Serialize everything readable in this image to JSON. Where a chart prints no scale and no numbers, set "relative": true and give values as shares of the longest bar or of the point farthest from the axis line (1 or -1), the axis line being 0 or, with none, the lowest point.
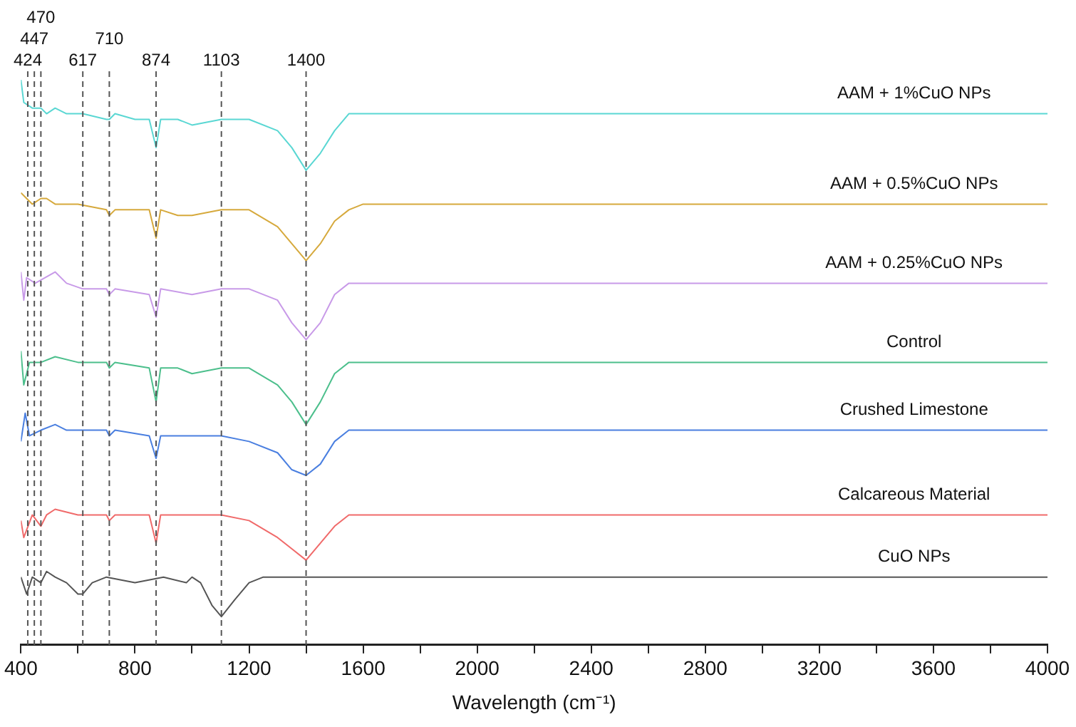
{
  "chart_data": {
    "type": "line",
    "relative": true,
    "xlabel": "Wavelength (cm⁻¹)",
    "xlim": [
      400,
      4000
    ],
    "xticks": [
      400,
      {
        "value": 600,
        "label": null
      },
      800,
      {
        "value": 1000,
        "label": null
      },
      1200,
      {
        "value": 1400,
        "label": null
      },
      1600,
      {
        "value": 1800,
        "label": null
      },
      2000,
      {
        "value": 2200,
        "label": null
      },
      2400,
      {
        "value": 2600,
        "label": null
      },
      2800,
      {
        "value": 3000,
        "label": null
      },
      3200,
      {
        "value": 3400,
        "label": null
      },
      3600,
      {
        "value": 3800,
        "label": null
      },
      4000
    ],
    "grid": false,
    "legend": false,
    "marker": "none",
    "line_style": "solid",
    "ref_lines": [
      {
        "axis": "x",
        "value": 424,
        "label": "424",
        "color": "#555555",
        "line_style": "dashed"
      },
      {
        "axis": "x",
        "value": 447,
        "label": "447",
        "color": "#555555",
        "line_style": "dashed"
      },
      {
        "axis": "x",
        "value": 470,
        "label": "470",
        "color": "#555555",
        "line_style": "dashed"
      },
      {
        "axis": "x",
        "value": 617,
        "label": "617",
        "color": "#555555",
        "line_style": "dashed"
      },
      {
        "axis": "x",
        "value": 710,
        "label": "710",
        "color": "#555555",
        "line_style": "dashed"
      },
      {
        "axis": "x",
        "value": 874,
        "label": "874",
        "color": "#555555",
        "line_style": "dashed"
      },
      {
        "axis": "x",
        "value": 1103,
        "label": "1103",
        "color": "#555555",
        "line_style": "dashed"
      },
      {
        "axis": "x",
        "value": 1400,
        "label": "1400",
        "color": "#555555",
        "line_style": "dashed"
      }
    ],
    "series": [
      {
        "name": "AAM + 1%CuO NPs",
        "color": "#5ad7d3",
        "x": [
          400,
          410,
          440,
          470,
          490,
          520,
          560,
          617,
          700,
          710,
          730,
          800,
          850,
          874,
          890,
          950,
          1000,
          1103,
          1200,
          1300,
          1350,
          1400,
          1450,
          1500,
          1550,
          1600,
          2000,
          2400,
          2800,
          4000
        ],
        "values": [
          1.0,
          0.96,
          0.95,
          0.95,
          0.94,
          0.95,
          0.94,
          0.94,
          0.93,
          0.93,
          0.94,
          0.93,
          0.93,
          0.88,
          0.93,
          0.93,
          0.92,
          0.93,
          0.93,
          0.91,
          0.88,
          0.84,
          0.87,
          0.91,
          0.94,
          0.94,
          0.94,
          0.94,
          0.94,
          0.94
        ]
      },
      {
        "name": "AAM + 0.5%CuO NPs",
        "color": "#d6a93c",
        "x": [
          400,
          420,
          440,
          470,
          490,
          520,
          600,
          700,
          710,
          730,
          850,
          874,
          890,
          950,
          1000,
          1103,
          1200,
          1300,
          1350,
          1400,
          1450,
          1500,
          1550,
          1600,
          2000,
          4000
        ],
        "values": [
          0.8,
          0.79,
          0.78,
          0.79,
          0.79,
          0.78,
          0.78,
          0.77,
          0.76,
          0.77,
          0.77,
          0.72,
          0.77,
          0.76,
          0.76,
          0.77,
          0.77,
          0.74,
          0.71,
          0.68,
          0.71,
          0.75,
          0.77,
          0.78,
          0.78,
          0.78
        ]
      },
      {
        "name": "AAM + 0.25%CuO NPs",
        "color": "#c89ae8",
        "x": [
          400,
          410,
          420,
          450,
          520,
          560,
          617,
          700,
          710,
          730,
          850,
          874,
          890,
          1000,
          1103,
          1200,
          1300,
          1350,
          1400,
          1450,
          1500,
          1550,
          1600,
          4000
        ],
        "values": [
          0.66,
          0.61,
          0.65,
          0.64,
          0.66,
          0.64,
          0.63,
          0.63,
          0.62,
          0.63,
          0.62,
          0.58,
          0.63,
          0.62,
          0.63,
          0.63,
          0.61,
          0.57,
          0.54,
          0.57,
          0.62,
          0.64,
          0.64,
          0.64
        ]
      },
      {
        "name": "Control",
        "color": "#4cbf8c",
        "x": [
          400,
          410,
          430,
          470,
          520,
          600,
          700,
          710,
          730,
          850,
          874,
          890,
          950,
          1000,
          1103,
          1200,
          1300,
          1350,
          1400,
          1450,
          1500,
          1550,
          1600,
          2000,
          4000
        ],
        "values": [
          0.52,
          0.46,
          0.5,
          0.5,
          0.51,
          0.5,
          0.5,
          0.49,
          0.5,
          0.49,
          0.43,
          0.49,
          0.49,
          0.48,
          0.49,
          0.49,
          0.46,
          0.43,
          0.39,
          0.43,
          0.48,
          0.5,
          0.5,
          0.5,
          0.5
        ]
      },
      {
        "name": "Crushed Limestone",
        "color": "#4a7fe0",
        "x": [
          400,
          415,
          430,
          470,
          520,
          560,
          700,
          710,
          730,
          850,
          874,
          890,
          1000,
          1103,
          1200,
          1300,
          1350,
          1400,
          1450,
          1500,
          1550,
          1600,
          4000
        ],
        "values": [
          0.36,
          0.41,
          0.37,
          0.38,
          0.39,
          0.38,
          0.38,
          0.37,
          0.38,
          0.37,
          0.33,
          0.37,
          0.37,
          0.37,
          0.36,
          0.34,
          0.31,
          0.3,
          0.32,
          0.36,
          0.38,
          0.38,
          0.38
        ]
      },
      {
        "name": "Calcareous Material",
        "color": "#f06a6a",
        "x": [
          400,
          410,
          440,
          470,
          490,
          520,
          600,
          700,
          710,
          730,
          850,
          874,
          890,
          1000,
          1103,
          1200,
          1300,
          1350,
          1400,
          1450,
          1500,
          1550,
          1600,
          4000
        ],
        "values": [
          0.22,
          0.19,
          0.23,
          0.21,
          0.23,
          0.24,
          0.23,
          0.23,
          0.22,
          0.23,
          0.23,
          0.18,
          0.23,
          0.23,
          0.23,
          0.22,
          0.19,
          0.17,
          0.15,
          0.18,
          0.21,
          0.23,
          0.23,
          0.23
        ]
      },
      {
        "name": "CuO NPs",
        "color": "#555555",
        "x": [
          400,
          420,
          440,
          470,
          490,
          520,
          560,
          600,
          617,
          650,
          700,
          800,
          900,
          980,
          1000,
          1030,
          1070,
          1103,
          1150,
          1200,
          1250,
          1600,
          2200,
          4000
        ],
        "values": [
          0.12,
          0.09,
          0.12,
          0.11,
          0.13,
          0.12,
          0.11,
          0.09,
          0.09,
          0.11,
          0.12,
          0.11,
          0.12,
          0.11,
          0.12,
          0.11,
          0.07,
          0.05,
          0.08,
          0.11,
          0.12,
          0.12,
          0.12,
          0.12
        ]
      }
    ]
  }
}
